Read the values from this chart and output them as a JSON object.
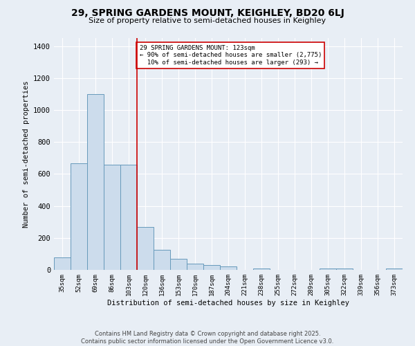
{
  "title_line1": "29, SPRING GARDENS MOUNT, KEIGHLEY, BD20 6LJ",
  "title_line2": "Size of property relative to semi-detached houses in Keighley",
  "xlabel": "Distribution of semi-detached houses by size in Keighley",
  "ylabel": "Number of semi-detached properties",
  "bar_color": "#ccdcec",
  "bar_edge_color": "#6699bb",
  "categories": [
    "35sqm",
    "52sqm",
    "69sqm",
    "86sqm",
    "103sqm",
    "120sqm",
    "136sqm",
    "153sqm",
    "170sqm",
    "187sqm",
    "204sqm",
    "221sqm",
    "238sqm",
    "255sqm",
    "272sqm",
    "289sqm",
    "305sqm",
    "322sqm",
    "339sqm",
    "356sqm",
    "373sqm"
  ],
  "values": [
    80,
    665,
    1100,
    660,
    660,
    270,
    125,
    70,
    40,
    30,
    20,
    0,
    10,
    0,
    0,
    0,
    10,
    10,
    0,
    0,
    10
  ],
  "property_label": "29 SPRING GARDENS MOUNT: 123sqm",
  "pct_smaller": 90,
  "n_smaller": 2775,
  "pct_larger": 10,
  "n_larger": 293,
  "vline_x_index": 5,
  "annotation_box_color": "#ffffff",
  "annotation_border_color": "#cc0000",
  "vline_color": "#cc0000",
  "ylim_max": 1450,
  "background_color": "#e8eef5",
  "grid_color": "#ffffff",
  "footer_line1": "Contains HM Land Registry data © Crown copyright and database right 2025.",
  "footer_line2": "Contains public sector information licensed under the Open Government Licence v3.0."
}
